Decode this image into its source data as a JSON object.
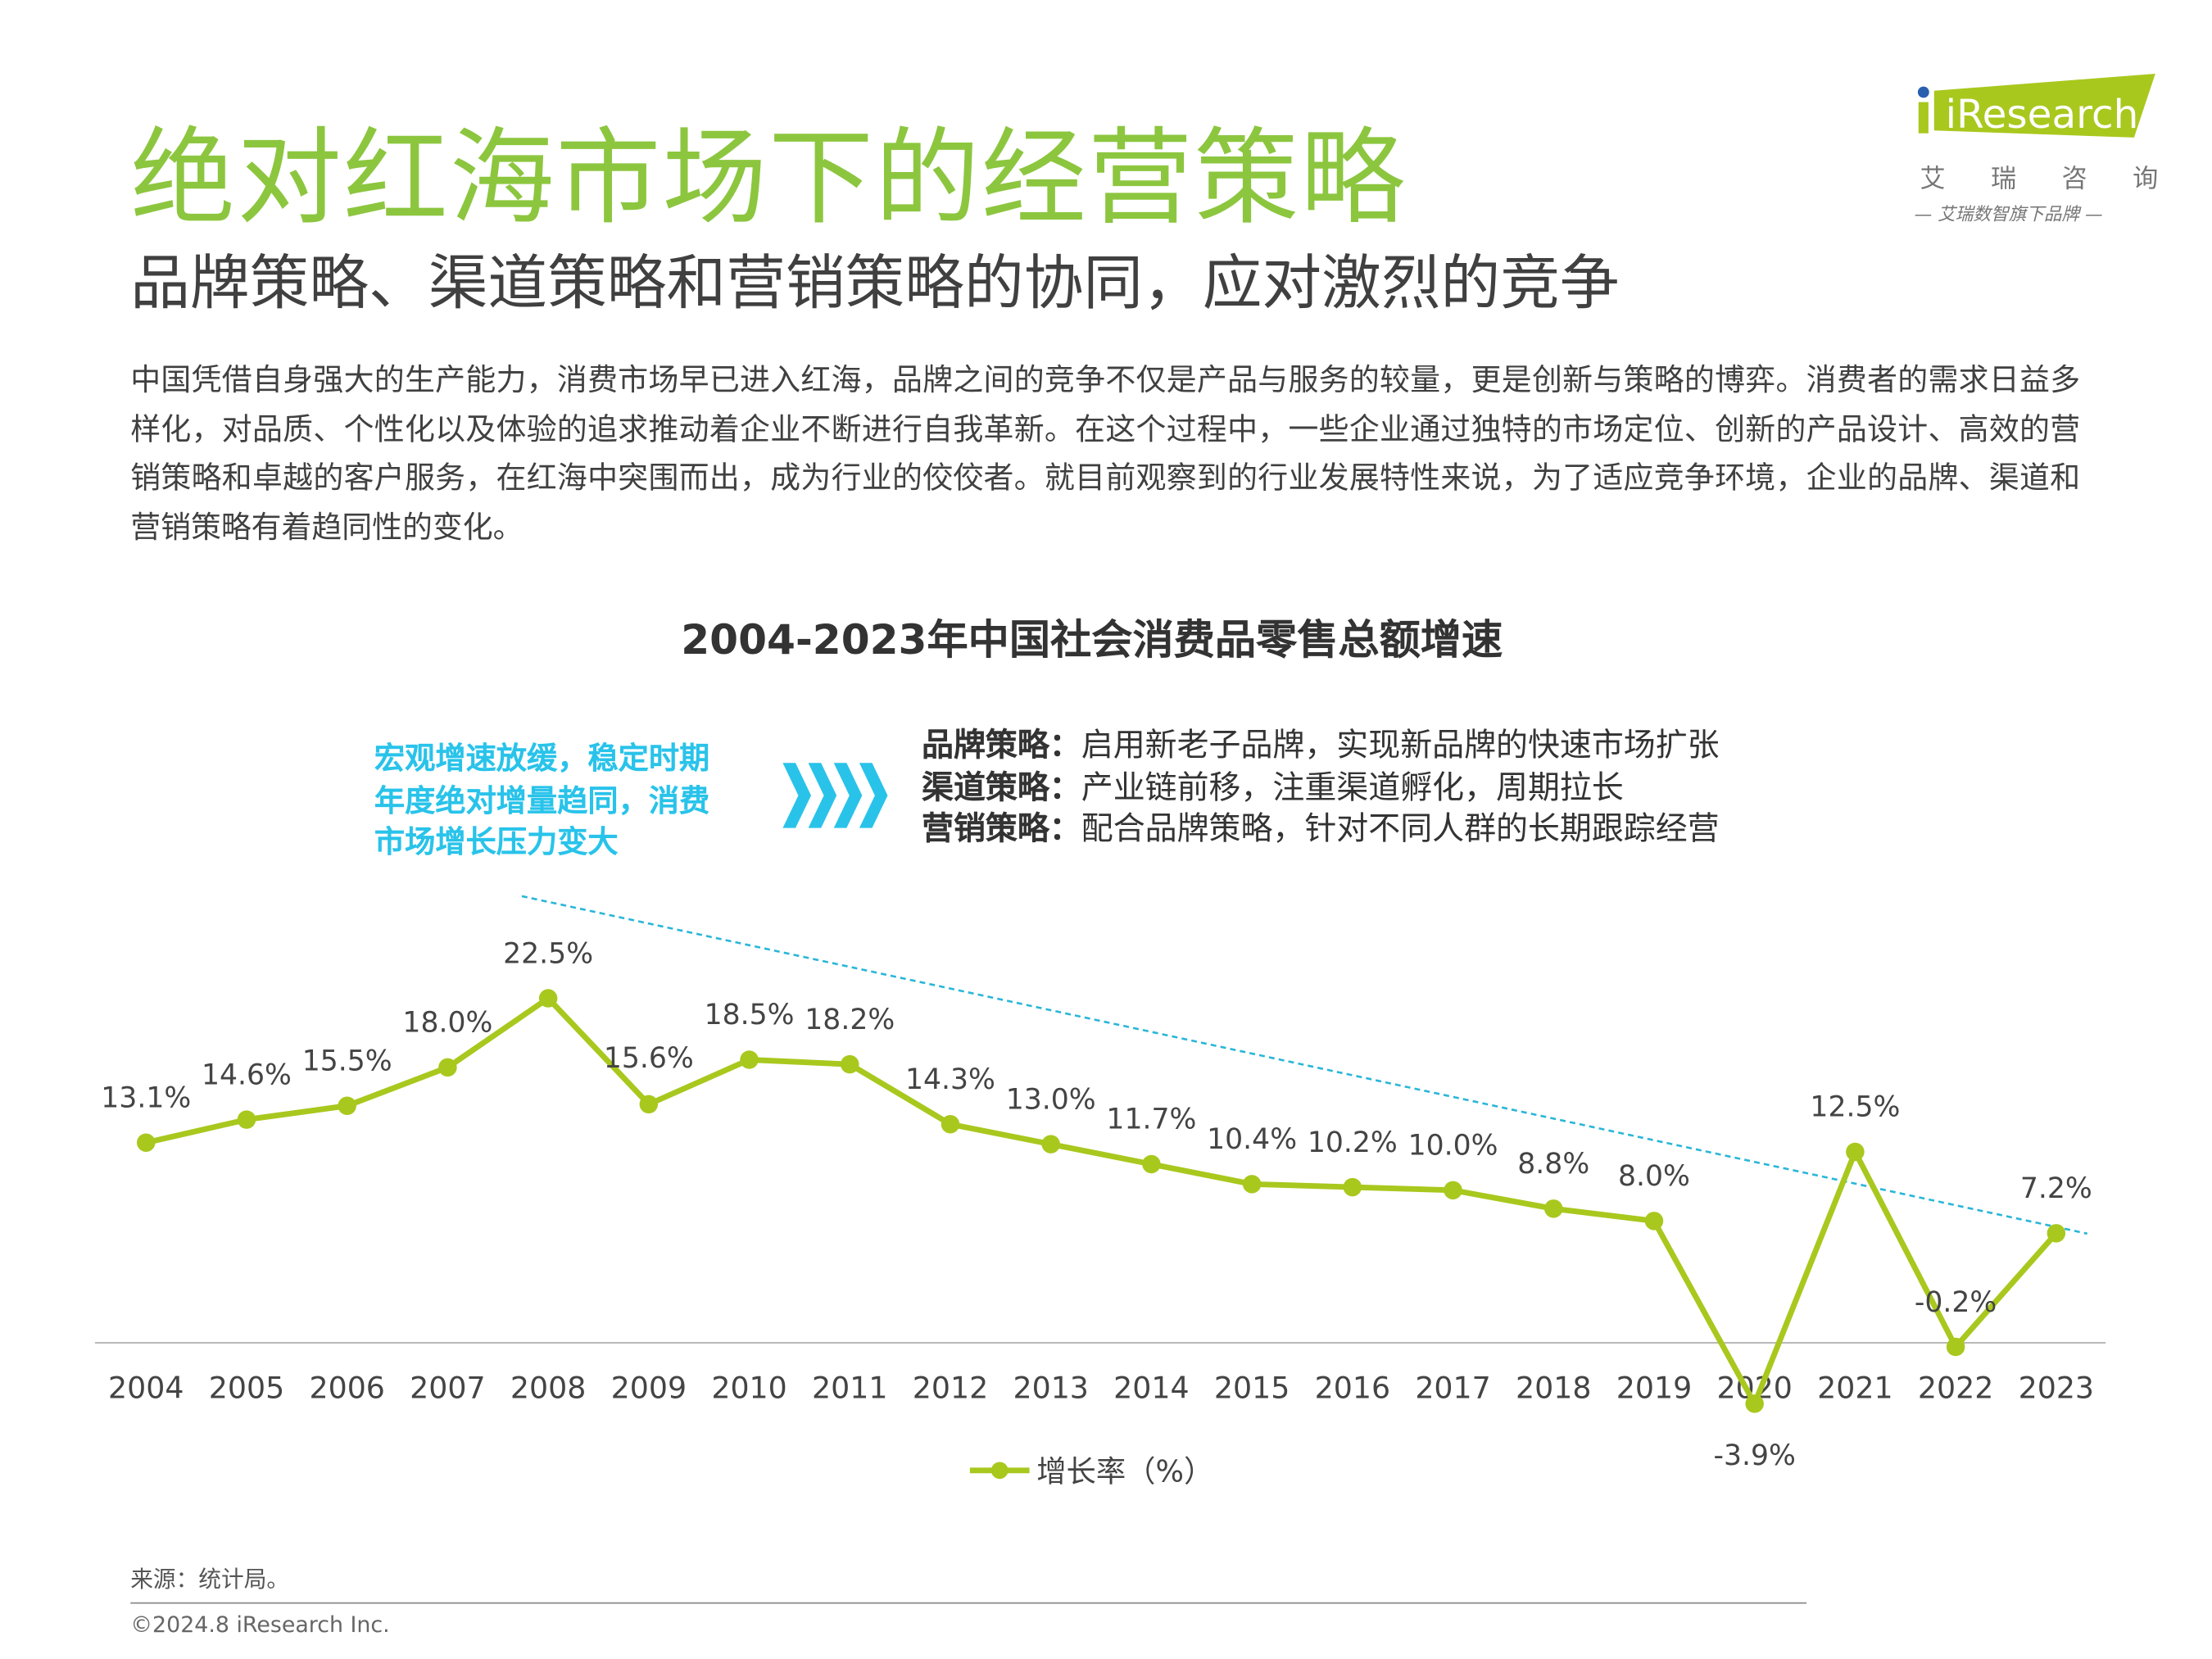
{
  "header": {
    "title": "绝对红海市场下的经营策略",
    "subtitle": "品牌策略、渠道策略和营销策略的协同，应对激烈的竞争"
  },
  "logo": {
    "brand": "iResearch",
    "cn_chars": [
      "艾",
      "瑞",
      "咨",
      "询"
    ],
    "tagline": "— 艾瑞数智旗下品牌 —",
    "colors": {
      "green": "#a8c81e",
      "dot": "#2a5fb0"
    }
  },
  "body_text": "中国凭借自身强大的生产能力，消费市场早已进入红海，品牌之间的竞争不仅是产品与服务的较量，更是创新与策略的博弈。消费者的需求日益多样化，对品质、个性化以及体验的追求推动着企业不断进行自我革新。在这个过程中，一些企业通过独特的市场定位、创新的产品设计、高效的营销策略和卓越的客户服务，在红海中突围而出，成为行业的佼佼者。就目前观察到的行业发展特性来说，为了适应竞争环境，企业的品牌、渠道和营销策略有着趋同性的变化。",
  "callout": {
    "lines": [
      "宏观增速放缓，稳定时期",
      "年度绝对增量趋同，消费",
      "市场增长压力变大"
    ],
    "color": "#29c3ea",
    "icon": "chevron-right-quad-icon"
  },
  "strategies": [
    {
      "label": "品牌策略：",
      "text": "启用新老子品牌，实现新品牌的快速市场扩张"
    },
    {
      "label": "渠道策略：",
      "text": "产业链前移，注重渠道孵化，周期拉长"
    },
    {
      "label": "营销策略：",
      "text": "配合品牌策略，针对不同人群的长期跟踪经营"
    }
  ],
  "chart_data": {
    "type": "line",
    "title": "2004-2023年中国社会消费品零售总额增速",
    "categories": [
      "2004",
      "2005",
      "2006",
      "2007",
      "2008",
      "2009",
      "2010",
      "2011",
      "2012",
      "2013",
      "2014",
      "2015",
      "2016",
      "2017",
      "2018",
      "2019",
      "2020",
      "2021",
      "2022",
      "2023"
    ],
    "series": [
      {
        "name": "增长率（%）",
        "values": [
          13.1,
          14.6,
          15.5,
          18.0,
          22.5,
          15.6,
          18.5,
          18.2,
          14.3,
          13.0,
          11.7,
          10.4,
          10.2,
          10.0,
          8.8,
          8.0,
          -3.9,
          12.5,
          -0.2,
          7.2
        ],
        "color": "#a8c81e"
      }
    ],
    "data_labels": [
      "13.1%",
      "14.6%",
      "15.5%",
      "18.0%",
      "22.5%",
      "15.6%",
      "18.5%",
      "18.2%",
      "14.3%",
      "13.0%",
      "11.7%",
      "10.4%",
      "10.2%",
      "10.0%",
      "8.8%",
      "8.0%",
      "-3.9%",
      "12.5%",
      "-0.2%",
      "7.2%"
    ],
    "trend_line": {
      "style": "dashed",
      "color": "#29b6d8"
    },
    "legend": "bottom-center",
    "grid": false,
    "y_axis_visible": false
  },
  "footer": {
    "source": "来源：统计局。",
    "copyright": "©2024.8 iResearch Inc."
  }
}
